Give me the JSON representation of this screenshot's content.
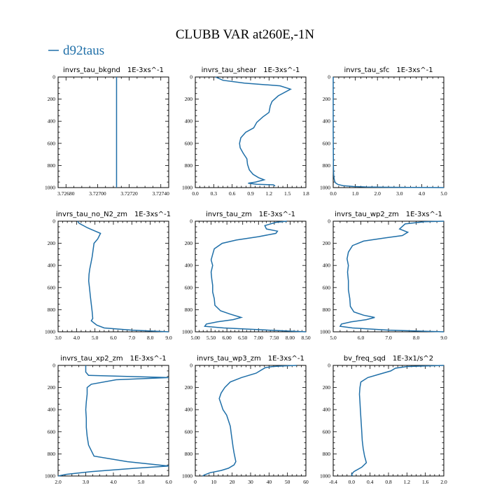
{
  "title": "CLUBB VAR at260E,-1N",
  "legend": {
    "label": "d92taus",
    "color": "#1f6fa8"
  },
  "chart_data": [
    {
      "type": "line",
      "title": "invrs_tau_bkgnd",
      "units": "1E-3xs^-1",
      "xlim": [
        3.72675,
        3.72745
      ],
      "xticks": [
        "3.72680",
        "3.72700",
        "3.72720",
        "3.72740"
      ],
      "xtick_values": [
        3.7268,
        3.727,
        3.7272,
        3.7274
      ],
      "ylim": [
        1000,
        0
      ],
      "yticks": [
        "0",
        "200",
        "400",
        "600",
        "800",
        "1000"
      ],
      "series": [
        {
          "x": [
            3.72712,
            3.72712
          ],
          "y": [
            0,
            1000
          ]
        }
      ]
    },
    {
      "type": "line",
      "title": "invrs_tau_shear",
      "units": "1E-3xs^-1",
      "xlim": [
        0,
        1.8
      ],
      "xticks": [
        "0.0",
        "0.3",
        "0.6",
        "0.9",
        "1.2",
        "1.5",
        "1.8"
      ],
      "xtick_values": [
        0,
        0.3,
        0.6,
        0.9,
        1.2,
        1.5,
        1.8
      ],
      "ylim": [
        1000,
        0
      ],
      "yticks": [
        "0",
        "200",
        "400",
        "600",
        "800",
        "1000"
      ],
      "series": [
        {
          "x": [
            0.33,
            0.45,
            0.8,
            1.15,
            1.38,
            1.55,
            1.35,
            1.25,
            1.22,
            1.2,
            1.1,
            1.0,
            0.95,
            0.82,
            0.74,
            0.72,
            0.73,
            0.78,
            0.84,
            0.85,
            0.88,
            0.94,
            1.03,
            1.12,
            0.98,
            0.86,
            1.0,
            1.27,
            1.3
          ],
          "y": [
            0,
            30,
            55,
            70,
            80,
            110,
            170,
            220,
            260,
            320,
            360,
            410,
            460,
            500,
            550,
            600,
            640,
            690,
            740,
            790,
            840,
            880,
            910,
            930,
            950,
            960,
            970,
            975,
            985
          ]
        }
      ]
    },
    {
      "type": "line",
      "title": "invrs_tau_sfc",
      "units": "1E-3xs^-1",
      "xlim": [
        0,
        5
      ],
      "xticks": [
        "0.0",
        "1.0",
        "2.0",
        "3.0",
        "4.0",
        "5.0"
      ],
      "xtick_values": [
        0,
        1,
        2,
        3,
        4,
        5
      ],
      "ylim": [
        1000,
        0
      ],
      "yticks": [
        "0",
        "200",
        "400",
        "600",
        "800",
        "1000"
      ],
      "series": [
        {
          "x": [
            0.0,
            0.0,
            0.005,
            0.01,
            0.02,
            0.04,
            0.07,
            0.12,
            0.22,
            0.45,
            0.9,
            1.5,
            2.5,
            3.5,
            4.5,
            5.0
          ],
          "y": [
            0,
            500,
            700,
            800,
            880,
            920,
            945,
            960,
            972,
            982,
            990,
            994,
            997,
            998.5,
            999.5,
            1000
          ]
        }
      ]
    },
    {
      "type": "line",
      "title": "invrs_tau_no_N2_zm",
      "units": "1E-3xs^-1",
      "xlim": [
        3,
        9
      ],
      "xticks": [
        "3.0",
        "4.0",
        "5.0",
        "6.0",
        "7.0",
        "8.0",
        "9.0"
      ],
      "xtick_values": [
        3,
        4,
        5,
        6,
        7,
        8,
        9
      ],
      "ylim": [
        1000,
        0
      ],
      "yticks": [
        "0",
        "200",
        "400",
        "600",
        "800",
        "1000"
      ],
      "series": [
        {
          "x": [
            4.05,
            4.15,
            4.6,
            5.3,
            5.15,
            4.95,
            4.9,
            4.85,
            4.78,
            4.72,
            4.68,
            4.66,
            4.7,
            4.75,
            4.8,
            4.85,
            4.88,
            4.8,
            4.95,
            5.1,
            5.5,
            7.0,
            9.0
          ],
          "y": [
            0,
            20,
            60,
            110,
            160,
            200,
            260,
            320,
            380,
            430,
            480,
            540,
            600,
            680,
            750,
            820,
            880,
            900,
            920,
            940,
            965,
            985,
            1000
          ]
        }
      ]
    },
    {
      "type": "line",
      "title": "invrs_tau_zm",
      "units": "1E-3xs^-1",
      "xlim": [
        5,
        8.5
      ],
      "xticks": [
        "5.00",
        "5.50",
        "6.00",
        "6.50",
        "7.00",
        "7.50",
        "8.00",
        "8.50"
      ],
      "xtick_values": [
        5,
        5.5,
        6,
        6.5,
        7,
        7.5,
        8,
        8.5
      ],
      "ylim": [
        1000,
        0
      ],
      "yticks": [
        "0",
        "200",
        "400",
        "600",
        "800",
        "1000"
      ],
      "series": [
        {
          "x": [
            7.9,
            7.55,
            7.2,
            7.25,
            7.6,
            7.55,
            7.0,
            6.3,
            5.85,
            5.6,
            5.55,
            5.5,
            5.55,
            5.5,
            5.52,
            5.55,
            5.55,
            5.6,
            5.62,
            5.8,
            6.1,
            6.45,
            6.2,
            5.7,
            5.35,
            5.3,
            5.9,
            7.3,
            8.5
          ],
          "y": [
            0,
            10,
            40,
            70,
            90,
            110,
            140,
            170,
            200,
            250,
            300,
            350,
            400,
            460,
            520,
            580,
            640,
            700,
            760,
            810,
            840,
            870,
            890,
            910,
            930,
            950,
            965,
            985,
            1000
          ]
        }
      ]
    },
    {
      "type": "line",
      "title": "invrs_tau_wp2_zm",
      "units": "1E-3xs^-1",
      "xlim": [
        5,
        9
      ],
      "xticks": [
        "5.0",
        "6.0",
        "7.0",
        "8.0",
        "9.0"
      ],
      "xtick_values": [
        5,
        6,
        7,
        8,
        9
      ],
      "ylim": [
        1000,
        0
      ],
      "yticks": [
        "0",
        "200",
        "400",
        "600",
        "800",
        "1000"
      ],
      "series": [
        {
          "x": [
            9.0,
            8.3,
            7.6,
            7.4,
            7.7,
            7.5,
            6.9,
            6.1,
            5.7,
            5.55,
            5.5,
            5.55,
            5.52,
            5.55,
            5.55,
            5.6,
            5.62,
            5.75,
            6.1,
            6.5,
            6.2,
            5.65,
            5.3,
            5.25,
            5.7,
            7.0,
            9.0
          ],
          "y": [
            0,
            5,
            25,
            70,
            100,
            130,
            150,
            180,
            220,
            280,
            340,
            400,
            460,
            540,
            620,
            700,
            770,
            820,
            850,
            870,
            890,
            910,
            930,
            950,
            965,
            985,
            1000
          ]
        }
      ]
    },
    {
      "type": "line",
      "title": "invrs_tau_xp2_zm",
      "units": "1E-3xs^-1",
      "xlim": [
        2,
        6
      ],
      "xticks": [
        "2.0",
        "3.0",
        "4.0",
        "5.0",
        "6.0"
      ],
      "xtick_values": [
        2,
        3,
        4,
        5,
        6
      ],
      "ylim": [
        1000,
        0
      ],
      "yticks": [
        "0",
        "200",
        "400",
        "600",
        "800",
        "1000"
      ],
      "series": [
        {
          "x": [
            3.0,
            3.0,
            3.1,
            6.0,
            4.1,
            3.2,
            3.05,
            3.05,
            3.02,
            3.0,
            3.02,
            3.02,
            3.05,
            3.1,
            3.3,
            4.5,
            6.0,
            4.8,
            3.2,
            2.3,
            2.0
          ],
          "y": [
            0,
            60,
            90,
            110,
            130,
            170,
            200,
            260,
            330,
            400,
            480,
            560,
            640,
            720,
            820,
            870,
            910,
            930,
            960,
            985,
            1000
          ]
        }
      ]
    },
    {
      "type": "line",
      "title": "invrs_tau_wp3_zm",
      "units": "1E-3xs^-1",
      "xlim": [
        0,
        60
      ],
      "xticks": [
        "0",
        "10",
        "20",
        "30",
        "40",
        "50",
        "60"
      ],
      "xtick_values": [
        0,
        10,
        20,
        30,
        40,
        50,
        60
      ],
      "ylim": [
        1000,
        0
      ],
      "yticks": [
        "0",
        "200",
        "400",
        "600",
        "800",
        "1000"
      ],
      "series": [
        {
          "x": [
            55,
            48,
            42,
            38,
            36,
            33,
            25,
            19,
            16,
            14,
            13,
            14,
            15,
            17,
            18,
            19,
            19.5,
            20,
            20.5,
            21,
            21.5,
            22,
            21,
            18,
            14,
            8,
            5,
            4
          ],
          "y": [
            0,
            5,
            10,
            20,
            40,
            70,
            110,
            150,
            200,
            250,
            300,
            350,
            400,
            450,
            500,
            550,
            620,
            680,
            740,
            790,
            830,
            870,
            900,
            930,
            950,
            970,
            990,
            1000
          ]
        }
      ]
    },
    {
      "type": "line",
      "title": "bv_freq_sqd",
      "units": "1E-3x1/s^2",
      "xlim": [
        -0.4,
        2
      ],
      "xticks": [
        "-0.4",
        "0.0",
        "0.4",
        "0.8",
        "1.2",
        "1.6",
        "2.0"
      ],
      "xtick_values": [
        -0.4,
        0,
        0.4,
        0.8,
        1.2,
        1.6,
        2.0
      ],
      "ylim": [
        1000,
        0
      ],
      "yticks": [
        "0",
        "200",
        "400",
        "600",
        "800",
        "1000"
      ],
      "series": [
        {
          "x": [
            2.0,
            1.2,
            0.95,
            0.85,
            0.6,
            0.35,
            0.2,
            0.18,
            0.17,
            0.18,
            0.19,
            0.2,
            0.21,
            0.22,
            0.23,
            0.25,
            0.28,
            0.32,
            0.22,
            0.05,
            0.0,
            0.02
          ],
          "y": [
            0,
            10,
            25,
            50,
            80,
            110,
            150,
            200,
            260,
            330,
            400,
            470,
            540,
            600,
            680,
            750,
            820,
            880,
            920,
            960,
            985,
            1000
          ]
        }
      ]
    }
  ]
}
